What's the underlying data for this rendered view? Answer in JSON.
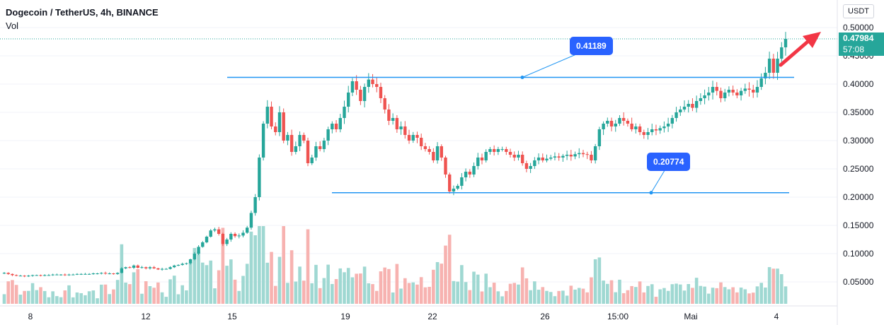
{
  "header": {
    "title": "Dogecoin / TetherUS, 4h, BINANCE",
    "vol_label": "Vol",
    "currency": "USDT"
  },
  "last_price": {
    "value": "0.47984",
    "countdown": "57:08"
  },
  "annotations": {
    "resistance": "0.41189",
    "support": "0.20774"
  },
  "colors": {
    "up": "#26a69a",
    "down": "#ef5350",
    "line": "#2196f3",
    "callout": "#2962ff",
    "arrow": "#f23645"
  },
  "chart_data": {
    "type": "candlestick",
    "y_axis": {
      "ticks": [
        0.5,
        0.45,
        0.4,
        0.35,
        0.3,
        0.25,
        0.2,
        0.15,
        0.1,
        0.05
      ],
      "tick_labels": [
        "0.50000",
        "0.45000",
        "0.40000",
        "0.35000",
        "0.30000",
        "0.25000",
        "0.20000",
        "0.15000",
        "0.10000",
        "0.05000"
      ]
    },
    "x_axis": {
      "tick_labels": [
        "8",
        "12",
        "15",
        "19",
        "22",
        "26",
        "15:00",
        "Mai",
        "4"
      ]
    },
    "horizontal_lines": [
      {
        "label": "0.41189",
        "value": 0.41189
      },
      {
        "label": "0.20774",
        "value": 0.20774
      }
    ],
    "last_price": 0.47984,
    "close": [
      0.066,
      0.064,
      0.062,
      0.061,
      0.061,
      0.06,
      0.061,
      0.062,
      0.062,
      0.061,
      0.062,
      0.062,
      0.063,
      0.063,
      0.063,
      0.062,
      0.063,
      0.063,
      0.064,
      0.064,
      0.064,
      0.064,
      0.065,
      0.065,
      0.066,
      0.065,
      0.065,
      0.064,
      0.066,
      0.074,
      0.076,
      0.075,
      0.079,
      0.075,
      0.076,
      0.074,
      0.076,
      0.074,
      0.072,
      0.073,
      0.073,
      0.076,
      0.079,
      0.08,
      0.082,
      0.083,
      0.09,
      0.1,
      0.112,
      0.12,
      0.13,
      0.141,
      0.143,
      0.135,
      0.117,
      0.125,
      0.135,
      0.131,
      0.132,
      0.137,
      0.146,
      0.172,
      0.2,
      0.27,
      0.33,
      0.36,
      0.325,
      0.315,
      0.35,
      0.3,
      0.31,
      0.28,
      0.29,
      0.31,
      0.3,
      0.26,
      0.27,
      0.29,
      0.285,
      0.3,
      0.32,
      0.33,
      0.32,
      0.34,
      0.36,
      0.385,
      0.405,
      0.39,
      0.37,
      0.395,
      0.408,
      0.4,
      0.395,
      0.375,
      0.355,
      0.335,
      0.34,
      0.32,
      0.325,
      0.31,
      0.3,
      0.31,
      0.305,
      0.29,
      0.285,
      0.28,
      0.265,
      0.29,
      0.27,
      0.24,
      0.21,
      0.215,
      0.22,
      0.235,
      0.245,
      0.24,
      0.255,
      0.27,
      0.265,
      0.28,
      0.285,
      0.28,
      0.285,
      0.285,
      0.28,
      0.275,
      0.27,
      0.275,
      0.26,
      0.25,
      0.255,
      0.265,
      0.27,
      0.265,
      0.268,
      0.27,
      0.272,
      0.27,
      0.273,
      0.275,
      0.272,
      0.276,
      0.278,
      0.276,
      0.275,
      0.265,
      0.29,
      0.32,
      0.33,
      0.335,
      0.325,
      0.33,
      0.34,
      0.335,
      0.33,
      0.32,
      0.325,
      0.315,
      0.31,
      0.315,
      0.32,
      0.318,
      0.322,
      0.325,
      0.33,
      0.34,
      0.35,
      0.355,
      0.36,
      0.365,
      0.358,
      0.37,
      0.375,
      0.38,
      0.385,
      0.395,
      0.388,
      0.375,
      0.385,
      0.39,
      0.385,
      0.38,
      0.388,
      0.392,
      0.39,
      0.385,
      0.395,
      0.41,
      0.42,
      0.445,
      0.42,
      0.445,
      0.465,
      0.47984
    ]
  }
}
